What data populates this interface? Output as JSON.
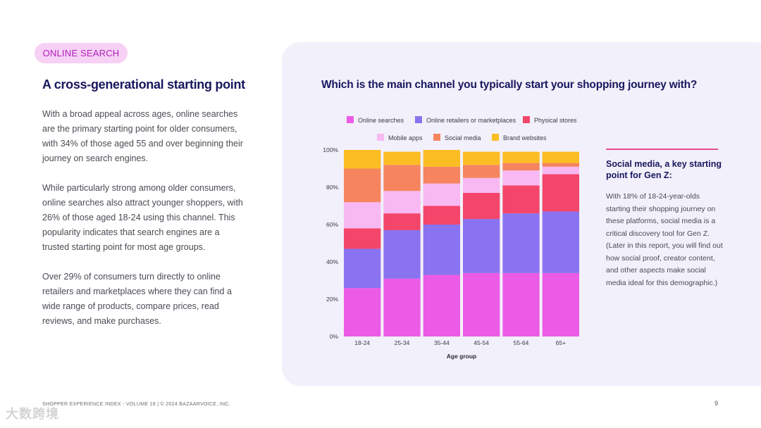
{
  "section_tag": "ONLINE SEARCH",
  "heading": "A cross-generational starting point",
  "paragraphs": [
    "With a broad appeal across ages, online searches are the primary starting point for older consumers, with 34% of those aged 55 and over beginning their journey on search engines.",
    "While particularly strong among older consumers, online searches also attract younger shoppers, with 26% of those aged 18-24 using this channel. This popularity indicates that search engines are a trusted starting point for most age groups.",
    "Over 29% of consumers turn directly to online retailers and marketplaces where they can find a wide range of products, compare prices, read reviews, and make purchases."
  ],
  "footer": "SHOPPER EXPERIENCE INDEX - VOLUME 18  |  © 2024 BAZAARVOICE, INC.",
  "page_number": "9",
  "watermark": "大数跨境",
  "sidebar": {
    "title": "Social media, a key starting point for Gen Z:",
    "text": "With 18% of 18-24-year-olds starting their shopping journey on these platforms, social media is a critical discovery tool for Gen Z. (Later in this report, you will find out how social proof, creator content, and other aspects make social media ideal for this demographic.)"
  },
  "chart_data": {
    "type": "bar",
    "stacked": true,
    "title": "Which is the main channel you typically start your shopping journey with?",
    "xlabel": "Age group",
    "ylabel": "",
    "ylim": [
      0,
      100
    ],
    "y_ticks": [
      0,
      20,
      40,
      60,
      80,
      100
    ],
    "y_tick_suffix": "%",
    "categories": [
      "18-24",
      "25-34",
      "35-44",
      "45-54",
      "55-64",
      "65+"
    ],
    "series": [
      {
        "name": "Online searches",
        "color": "#ec5be6",
        "values": [
          26,
          31,
          33,
          34,
          34,
          34
        ]
      },
      {
        "name": "Online retailers or marketplaces",
        "color": "#8a73f0",
        "values": [
          21,
          26,
          27,
          29,
          32,
          33
        ]
      },
      {
        "name": "Physical stores",
        "color": "#f4466a",
        "values": [
          11,
          9,
          10,
          14,
          15,
          20
        ]
      },
      {
        "name": "Mobile apps",
        "color": "#f8b8f2",
        "values": [
          14,
          12,
          12,
          8,
          8,
          4
        ]
      },
      {
        "name": "Social media",
        "color": "#f6845f",
        "values": [
          18,
          14,
          9,
          7,
          4,
          2
        ]
      },
      {
        "name": "Brand websites",
        "color": "#fbbd24",
        "values": [
          10,
          7,
          9,
          7,
          6,
          6
        ]
      }
    ]
  }
}
